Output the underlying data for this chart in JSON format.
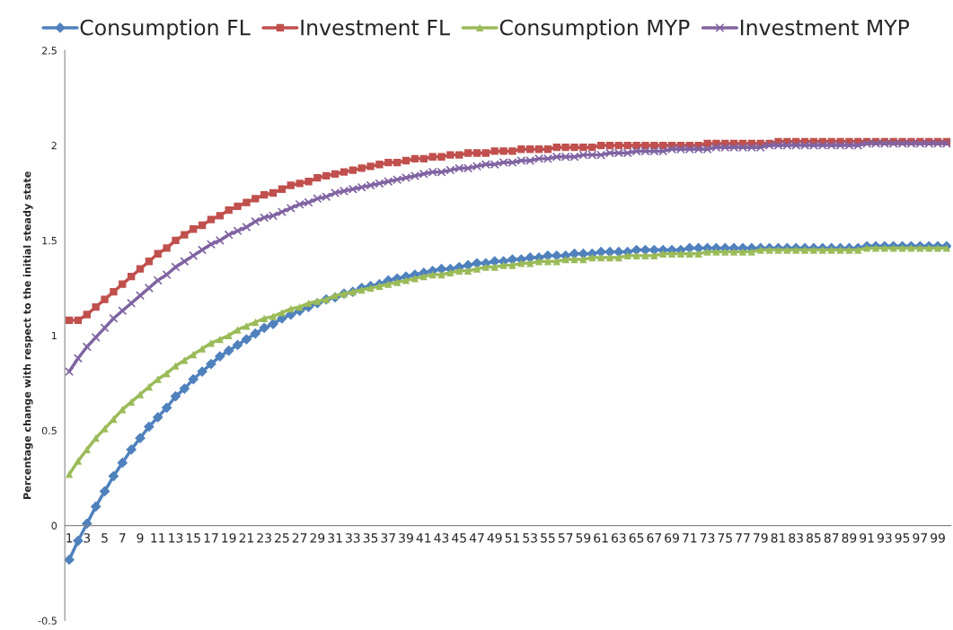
{
  "chart_data": {
    "type": "line",
    "ylabel": "Percentage change with respect to the initial steady state",
    "categories": [
      "1",
      null,
      "3",
      null,
      "5",
      null,
      "7",
      null,
      "9",
      null,
      "11",
      null,
      "13",
      null,
      "15",
      null,
      "17",
      null,
      "19",
      null,
      "21",
      null,
      "23",
      null,
      "25",
      null,
      "27",
      null,
      "29",
      null,
      "31",
      null,
      "33",
      null,
      "35",
      null,
      "37",
      null,
      "39",
      null,
      "41",
      null,
      "43",
      null,
      "45",
      null,
      "47",
      null,
      "49",
      null,
      "51",
      null,
      "53",
      null,
      "55",
      null,
      "57",
      null,
      "59",
      null,
      "61",
      null,
      "63",
      null,
      "65",
      null,
      "67",
      null,
      "69",
      null,
      "71",
      null,
      "73",
      null,
      "75",
      null,
      "77",
      null,
      "79",
      null,
      "81",
      null,
      "83",
      null,
      "85",
      null,
      "87",
      null,
      "89",
      null,
      "91",
      null,
      "93",
      null,
      "95",
      null,
      "97",
      null,
      "99",
      null
    ],
    "series": [
      {
        "name": "Consumption FL",
        "color": "#4f81bd",
        "marker": "diamond",
        "values": [
          -0.18,
          -0.08,
          0.01,
          0.1,
          0.18,
          0.26,
          0.33,
          0.4,
          0.46,
          0.52,
          0.57,
          0.62,
          0.68,
          0.72,
          0.77,
          0.81,
          0.85,
          0.89,
          0.92,
          0.95,
          0.98,
          1.01,
          1.04,
          1.06,
          1.09,
          1.11,
          1.13,
          1.15,
          1.17,
          1.19,
          1.2,
          1.22,
          1.23,
          1.25,
          1.26,
          1.27,
          1.29,
          1.3,
          1.31,
          1.32,
          1.33,
          1.34,
          1.35,
          1.35,
          1.36,
          1.37,
          1.38,
          1.38,
          1.39,
          1.39,
          1.4,
          1.4,
          1.41,
          1.41,
          1.42,
          1.42,
          1.42,
          1.43,
          1.43,
          1.43,
          1.44,
          1.44,
          1.44,
          1.44,
          1.45,
          1.45,
          1.45,
          1.45,
          1.45,
          1.45,
          1.46,
          1.46,
          1.46,
          1.46,
          1.46,
          1.46,
          1.46,
          1.46,
          1.46,
          1.46,
          1.46,
          1.46,
          1.46,
          1.46,
          1.46,
          1.46,
          1.46,
          1.46,
          1.46,
          1.46,
          1.47,
          1.47,
          1.47,
          1.47,
          1.47,
          1.47,
          1.47,
          1.47,
          1.47,
          1.47
        ]
      },
      {
        "name": "Investment FL",
        "color": "#c0504d",
        "marker": "square",
        "values": [
          1.08,
          1.08,
          1.11,
          1.15,
          1.19,
          1.23,
          1.27,
          1.31,
          1.35,
          1.39,
          1.43,
          1.46,
          1.5,
          1.53,
          1.56,
          1.58,
          1.61,
          1.63,
          1.66,
          1.68,
          1.7,
          1.72,
          1.74,
          1.75,
          1.77,
          1.79,
          1.8,
          1.81,
          1.83,
          1.84,
          1.85,
          1.86,
          1.87,
          1.88,
          1.89,
          1.9,
          1.91,
          1.91,
          1.92,
          1.93,
          1.93,
          1.94,
          1.94,
          1.95,
          1.95,
          1.96,
          1.96,
          1.96,
          1.97,
          1.97,
          1.97,
          1.98,
          1.98,
          1.98,
          1.98,
          1.99,
          1.99,
          1.99,
          1.99,
          1.99,
          2.0,
          2.0,
          2.0,
          2.0,
          2.0,
          2.0,
          2.0,
          2.0,
          2.0,
          2.0,
          2.0,
          2.0,
          2.01,
          2.01,
          2.01,
          2.01,
          2.01,
          2.01,
          2.01,
          2.01,
          2.02,
          2.02,
          2.02,
          2.02,
          2.02,
          2.02,
          2.02,
          2.02,
          2.02,
          2.02,
          2.02,
          2.02,
          2.02,
          2.02,
          2.02,
          2.02,
          2.02,
          2.02,
          2.02,
          2.02
        ]
      },
      {
        "name": "Consumption MYP",
        "color": "#9bbb59",
        "marker": "triangle",
        "values": [
          0.27,
          0.34,
          0.4,
          0.46,
          0.51,
          0.56,
          0.61,
          0.65,
          0.69,
          0.73,
          0.77,
          0.8,
          0.84,
          0.87,
          0.9,
          0.93,
          0.96,
          0.98,
          1.0,
          1.03,
          1.05,
          1.07,
          1.09,
          1.1,
          1.12,
          1.14,
          1.15,
          1.17,
          1.18,
          1.19,
          1.21,
          1.22,
          1.23,
          1.24,
          1.25,
          1.26,
          1.27,
          1.28,
          1.29,
          1.3,
          1.31,
          1.32,
          1.32,
          1.33,
          1.34,
          1.34,
          1.35,
          1.36,
          1.36,
          1.37,
          1.37,
          1.38,
          1.38,
          1.39,
          1.39,
          1.39,
          1.4,
          1.4,
          1.4,
          1.41,
          1.41,
          1.41,
          1.41,
          1.42,
          1.42,
          1.42,
          1.42,
          1.43,
          1.43,
          1.43,
          1.43,
          1.43,
          1.44,
          1.44,
          1.44,
          1.44,
          1.44,
          1.44,
          1.45,
          1.45,
          1.45,
          1.45,
          1.45,
          1.45,
          1.45,
          1.45,
          1.45,
          1.45,
          1.45,
          1.45,
          1.46,
          1.46,
          1.46,
          1.46,
          1.46,
          1.46,
          1.46,
          1.46,
          1.46,
          1.46
        ]
      },
      {
        "name": "Investment MYP",
        "color": "#8064a2",
        "marker": "cross",
        "values": [
          0.81,
          0.88,
          0.94,
          0.99,
          1.04,
          1.09,
          1.13,
          1.17,
          1.21,
          1.25,
          1.29,
          1.32,
          1.36,
          1.39,
          1.42,
          1.45,
          1.48,
          1.5,
          1.53,
          1.55,
          1.57,
          1.6,
          1.62,
          1.63,
          1.65,
          1.67,
          1.69,
          1.7,
          1.72,
          1.73,
          1.75,
          1.76,
          1.77,
          1.78,
          1.79,
          1.8,
          1.81,
          1.82,
          1.83,
          1.84,
          1.85,
          1.86,
          1.86,
          1.87,
          1.88,
          1.88,
          1.89,
          1.9,
          1.9,
          1.91,
          1.91,
          1.92,
          1.92,
          1.93,
          1.93,
          1.94,
          1.94,
          1.94,
          1.95,
          1.95,
          1.95,
          1.96,
          1.96,
          1.96,
          1.97,
          1.97,
          1.97,
          1.97,
          1.98,
          1.98,
          1.98,
          1.98,
          1.98,
          1.99,
          1.99,
          1.99,
          1.99,
          1.99,
          1.99,
          2.0,
          2.0,
          2.0,
          2.0,
          2.0,
          2.0,
          2.0,
          2.0,
          2.0,
          2.0,
          2.0,
          2.01,
          2.01,
          2.01,
          2.01,
          2.01,
          2.01,
          2.01,
          2.01,
          2.01,
          2.01
        ]
      }
    ],
    "ylim": [
      -0.5,
      2.5
    ],
    "yticks": [
      -0.5,
      0,
      0.5,
      1,
      1.5,
      2,
      2.5
    ],
    "grid": false,
    "legend": "top",
    "line_style": "solid"
  }
}
